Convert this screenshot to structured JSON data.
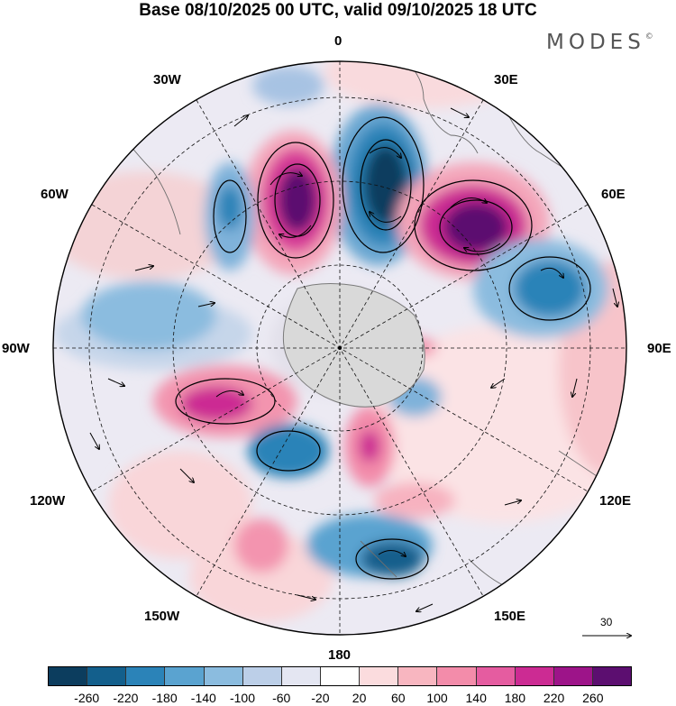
{
  "title": "Base 08/10/2025 00 UTC, valid 09/10/2025 18 UTC",
  "brand": "MODES",
  "brand_mark": "©",
  "map_labels": {
    "lon_0": "0",
    "lon_30e": "30E",
    "lon_60e": "60E",
    "lon_90e": "90E",
    "lon_120e": "120E",
    "lon_150e": "150E",
    "lon_180": "180",
    "lon_150w": "150W",
    "lon_120w": "120W",
    "lon_90w": "90W",
    "lon_60w": "60W",
    "lon_30w": "30W"
  },
  "vector_reference": {
    "label": "30"
  },
  "colorbar": {
    "colors": [
      "#0c3d5e",
      "#135f8c",
      "#2b83b8",
      "#5aa3d0",
      "#8bbcdf",
      "#bccfe8",
      "#e4e6f2",
      "#ffffff",
      "#fbdcde",
      "#f8b6c0",
      "#f38caa",
      "#e55ca0",
      "#cc2b93",
      "#9d1489",
      "#5c0e70"
    ],
    "ticks": [
      "-260",
      "-220",
      "-180",
      "-140",
      "-100",
      "-60",
      "-20",
      "20",
      "60",
      "100",
      "140",
      "180",
      "220",
      "260"
    ]
  }
}
